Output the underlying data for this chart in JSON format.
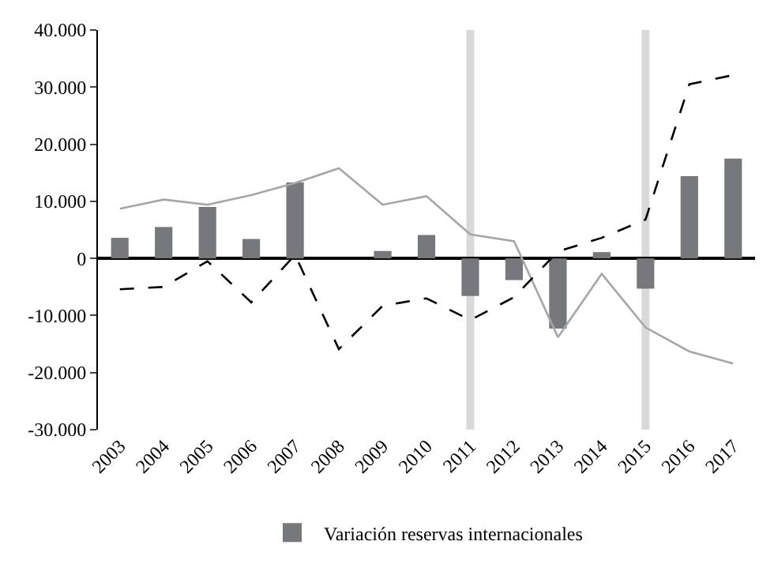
{
  "chart_data": {
    "type": "bar",
    "categories": [
      "2003",
      "2004",
      "2005",
      "2006",
      "2007",
      "2008",
      "2009",
      "2010",
      "2011",
      "2012",
      "2013",
      "2014",
      "2015",
      "2016",
      "2017"
    ],
    "series": [
      {
        "name": "Variación reservas internacionales",
        "color": "#77787b",
        "values": [
          3600,
          5500,
          9000,
          3400,
          13300,
          null,
          1300,
          4100,
          -6600,
          -3800,
          -12300,
          1100,
          -5300,
          14400,
          17500
        ]
      },
      {
        "color": "#a6a6a6",
        "type": "line",
        "line_style": "solid",
        "values": [
          8700,
          10300,
          9400,
          11100,
          13200,
          15800,
          9400,
          10900,
          4200,
          3000,
          -13800,
          -2700,
          -12100,
          -16300,
          -18400
        ]
      },
      {
        "color": "#000000",
        "type": "line",
        "line_style": "dashed",
        "values": [
          -5400,
          -5000,
          -500,
          -7700,
          600,
          -15900,
          -8300,
          -7000,
          -10800,
          -6800,
          1200,
          3600,
          6800,
          30500,
          32100
        ]
      }
    ],
    "ylim": [
      -30000,
      40000
    ],
    "yticks": [
      {
        "value": -30000,
        "label": "-30.000"
      },
      {
        "value": -20000,
        "label": "-20.000"
      },
      {
        "value": -10000,
        "label": "-10.000"
      },
      0,
      {
        "value": 10000,
        "label": "10.000"
      },
      {
        "value": 20000,
        "label": "20.000"
      },
      {
        "value": 30000,
        "label": "30.000"
      },
      {
        "value": 40000,
        "label": "40.000"
      }
    ],
    "ref_lines": [
      {
        "axis": "x",
        "value": "2011",
        "color": "#d9d9d9"
      },
      {
        "axis": "x",
        "value": "2015",
        "color": "#d9d9d9"
      }
    ],
    "grid": false,
    "legend": "bottom",
    "marker": "none"
  }
}
